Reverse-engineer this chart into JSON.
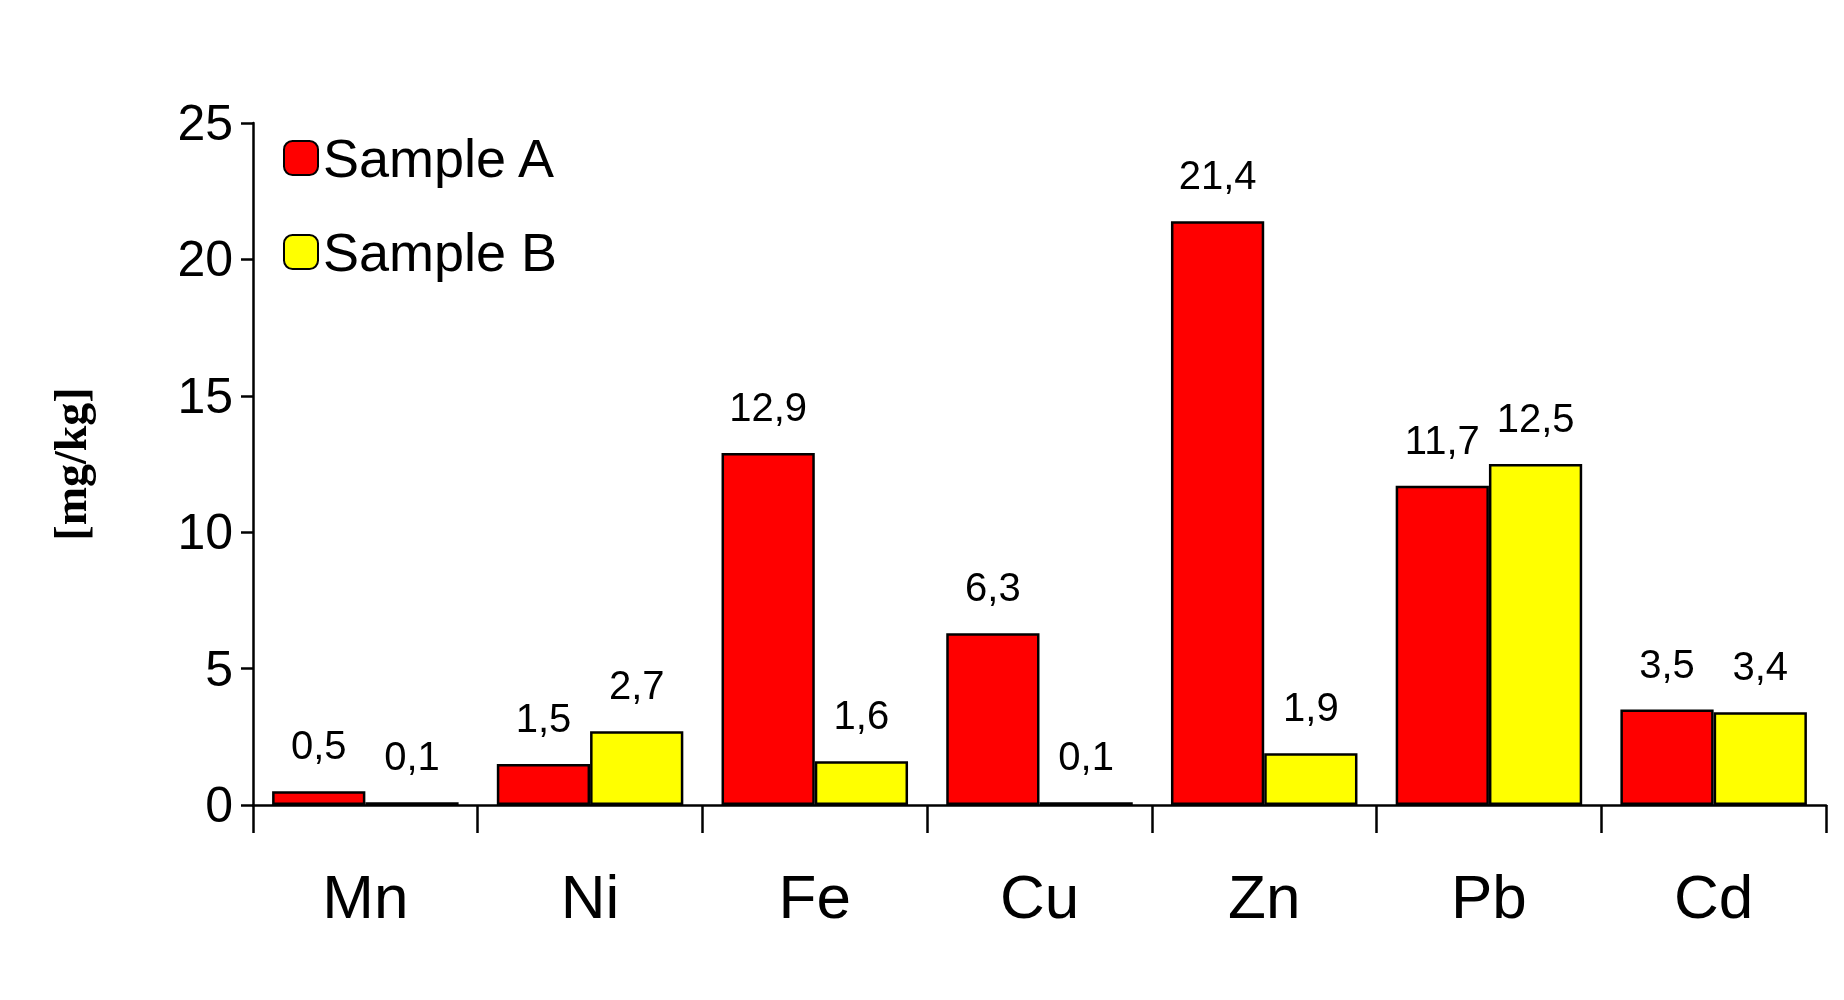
{
  "chart_data": {
    "type": "bar",
    "ylabel": "[mg/kg]",
    "categories": [
      "Mn",
      "Ni",
      "Fe",
      "Cu",
      "Zn",
      "Pb",
      "Cd"
    ],
    "series": [
      {
        "name": "Sample A",
        "color": "#ff0000",
        "values": [
          0.5,
          1.5,
          12.9,
          6.3,
          21.4,
          11.7,
          3.5
        ],
        "value_labels": [
          "0,5",
          "1,5",
          "12,9",
          "6,3",
          "21,4",
          "11,7",
          "3,5"
        ]
      },
      {
        "name": "Sample B",
        "color": "#ffff00",
        "values": [
          0.1,
          2.7,
          1.6,
          0.1,
          1.9,
          12.5,
          3.4
        ],
        "value_labels": [
          "0,1",
          "2,7",
          "1,6",
          "0,1",
          "1,9",
          "12,5",
          "3,4"
        ]
      }
    ],
    "ylim": [
      0,
      25
    ],
    "yticks": [
      0,
      5,
      10,
      15,
      20,
      25
    ],
    "grid": false,
    "legend": "top left"
  }
}
